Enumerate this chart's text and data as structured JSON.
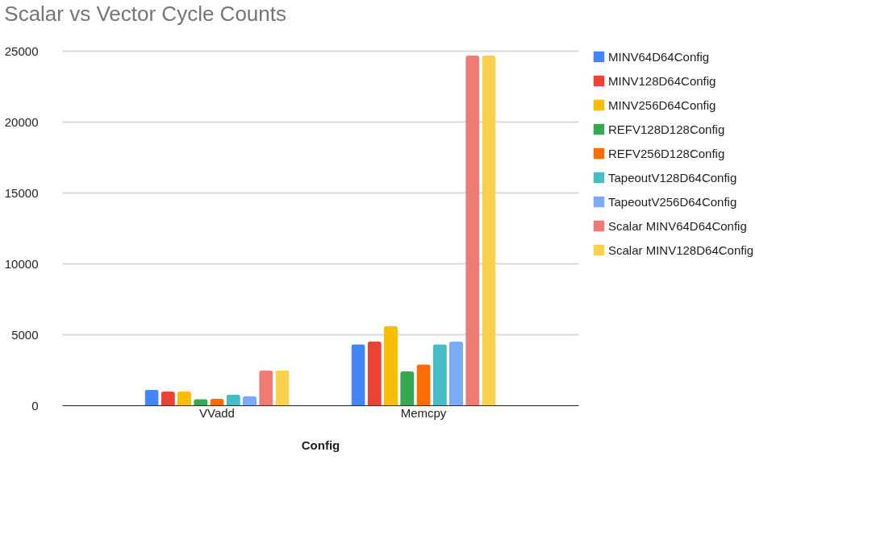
{
  "chart_data": {
    "type": "bar",
    "title": "Scalar vs Vector Cycle Counts",
    "xlabel": "Config",
    "categories": [
      "VVadd",
      "Memcpy"
    ],
    "series": [
      {
        "name": "MINV64D64Config",
        "color": "#4285f4",
        "values": [
          1090,
          4300
        ]
      },
      {
        "name": "MINV128D64Config",
        "color": "#ea4335",
        "values": [
          960,
          4490
        ]
      },
      {
        "name": "MINV256D64Config",
        "color": "#fbbc04",
        "values": [
          960,
          5580
        ]
      },
      {
        "name": "REFV128D128Config",
        "color": "#34a853",
        "values": [
          440,
          2380
        ]
      },
      {
        "name": "REFV256D128Config",
        "color": "#ff6d01",
        "values": [
          450,
          2880
        ]
      },
      {
        "name": "TapeoutV128D64Config",
        "color": "#46bdc6",
        "values": [
          750,
          4300
        ]
      },
      {
        "name": "TapeoutV256D64Config",
        "color": "#7baaf7",
        "values": [
          640,
          4490
        ]
      },
      {
        "name": "Scalar MINV64D64Config",
        "color": "#f07b72",
        "values": [
          2450,
          24660
        ]
      },
      {
        "name": "Scalar MINV128D64Config",
        "color": "#fcd04f",
        "values": [
          2450,
          24660
        ]
      }
    ],
    "ylim": [
      0,
      25000
    ],
    "yticks": [
      0,
      5000,
      10000,
      15000,
      20000,
      25000
    ],
    "grid": "y",
    "legend": "right"
  }
}
